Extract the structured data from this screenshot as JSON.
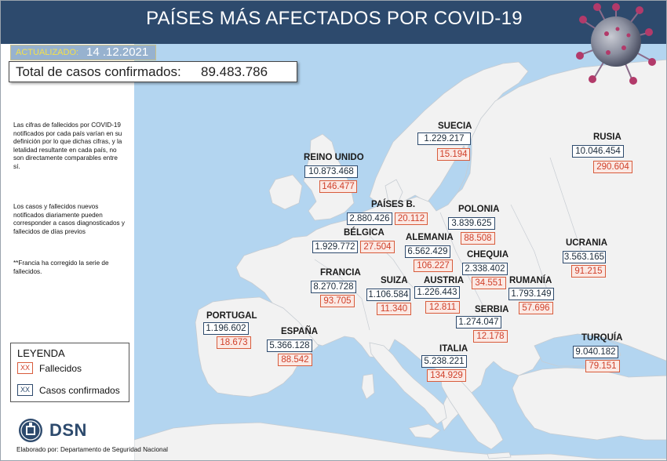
{
  "header": {
    "title": "PAÍSES MÁS AFECTADOS POR COVID-19"
  },
  "update": {
    "label": "ACTUALIZADO:",
    "date": "14 .12.2021"
  },
  "total": {
    "label": "Total de casos confirmados:",
    "value": "89.483.786"
  },
  "notes": [
    "Las cifras de fallecidos por COVID-19 notificados por cada país varían en su definición por lo que dichas cifras, y la letalidad resultante en cada país, no son directamente comparables entre sí.",
    "Los casos y fallecidos nuevos notificados diariamente pueden corresponder a casos diagnosticados y fallecidos de días previos",
    "**Francia ha corregido la serie de fallecidos."
  ],
  "legend": {
    "title": "LEYENDA",
    "deaths_symbol": "XX",
    "deaths_label": "Fallecidos",
    "cases_symbol": "XX",
    "cases_label": "Casos confirmados"
  },
  "logo": {
    "text": "DSN",
    "credit": "Elaborado por: Departamento de Seguridad Nacional"
  },
  "colors": {
    "header": "#2d4a6d",
    "sea": "#b3d5f0",
    "land": "#f2f2f2",
    "deaths": "#d85c3c",
    "cases": "#2d4a6d"
  },
  "countries": {
    "suecia": {
      "name": "SUECIA",
      "cases": "1.229.217",
      "deaths": "15.194"
    },
    "rusia": {
      "name": "RUSIA",
      "cases": "10.046.454",
      "deaths": "290.604"
    },
    "reino_unido": {
      "name": "REINO UNIDO",
      "cases": "10.873.468",
      "deaths": "146.477"
    },
    "paises_b": {
      "name": "PAÍSES B.",
      "cases": "2.880.426",
      "deaths": "20.112"
    },
    "polonia": {
      "name": "POLONIA",
      "cases": "3.839.625",
      "deaths": "88.508"
    },
    "belgica": {
      "name": "BÉLGICA",
      "cases": "1.929.772",
      "deaths": "27.504"
    },
    "alemania": {
      "name": "ALEMANIA",
      "cases": "6.562.429",
      "deaths": "106.227"
    },
    "ucrania": {
      "name": "UCRANIA",
      "cases": "3.563.165",
      "deaths": "91.215"
    },
    "chequia": {
      "name": "CHEQUIA",
      "cases": "2.338.402",
      "deaths": "34.551"
    },
    "francia": {
      "name": "FRANCIA",
      "cases": "8.270.728",
      "deaths": "93.705"
    },
    "suiza": {
      "name": "SUIZA",
      "cases": "1.106.584",
      "deaths": "11.340"
    },
    "austria": {
      "name": "AUSTRIA",
      "cases": "1.226.443",
      "deaths": "12.811"
    },
    "rumania": {
      "name": "RUMANÍA",
      "cases": "1.793.149",
      "deaths": "57.696"
    },
    "portugal": {
      "name": "PORTUGAL",
      "cases": "1.196.602",
      "deaths": "18.673"
    },
    "serbia": {
      "name": "SERBIA",
      "cases": "1.274.047",
      "deaths": "12.178"
    },
    "espana": {
      "name": "ESPAÑA",
      "cases": "5.366.128",
      "deaths": "88.542"
    },
    "turquia": {
      "name": "TURQUÍA",
      "cases": "9.040.182",
      "deaths": "79.151"
    },
    "italia": {
      "name": "ITALIA",
      "cases": "5.238.221",
      "deaths": "134.929"
    }
  }
}
